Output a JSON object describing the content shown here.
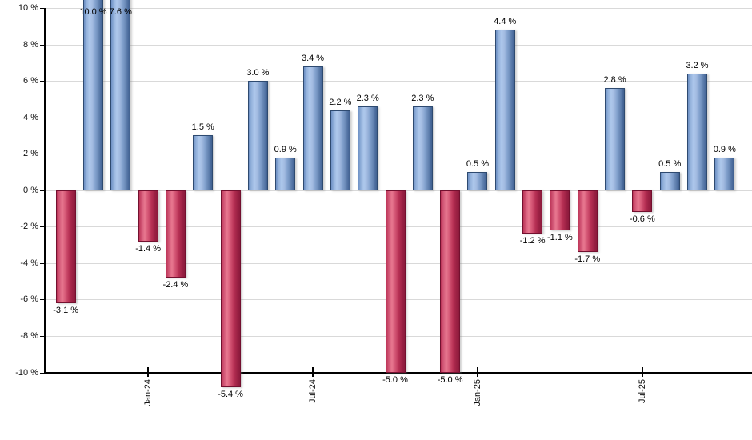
{
  "chart_data": {
    "type": "bar",
    "title": "",
    "xlabel": "",
    "ylabel": "",
    "unit": "%",
    "values": [
      -3.1,
      10.0,
      7.6,
      -1.4,
      -2.4,
      1.5,
      -5.4,
      3.0,
      0.9,
      3.4,
      2.2,
      2.3,
      -5.0,
      2.3,
      -5.0,
      0.5,
      4.4,
      -1.2,
      -1.1,
      -1.7,
      2.8,
      -0.6,
      0.5,
      3.2,
      0.9
    ],
    "bar_labels": [
      "-3.1 %",
      "10.0 %",
      "7.6 %",
      "-1.4 %",
      "-2.4 %",
      "1.5 %",
      "-5.4 %",
      "3.0 %",
      "0.9 %",
      "3.4 %",
      "2.2 %",
      "2.3 %",
      "-5.0 %",
      "2.3 %",
      "-5.0 %",
      "0.5 %",
      "4.4 %",
      "-1.2 %",
      "-1.1 %",
      "-1.7 %",
      "2.8 %",
      "-0.6 %",
      "0.5 %",
      "3.2 %",
      "0.9 %"
    ],
    "x_ticks": [
      {
        "bar_index": 3,
        "label": "Jan-24"
      },
      {
        "bar_index": 9,
        "label": "Jul-24"
      },
      {
        "bar_index": 15,
        "label": "Jan-25"
      },
      {
        "bar_index": 21,
        "label": "Jul-25"
      }
    ],
    "y_tick_labels": [
      "10 %",
      "8 %",
      "6 %",
      "4 %",
      "2 %",
      "0 %",
      "-2 %",
      "-4 %",
      "-6 %",
      "-8 %",
      "-10 %"
    ],
    "ylim": [
      -10,
      10
    ],
    "y_step": 2,
    "grid": true,
    "legend": "none",
    "colors": {
      "positive_fill": "#a3bce2",
      "positive_highlight": "#aec8ec",
      "positive_dark": "#41618f",
      "positive_edge": "#2e4a70",
      "negative_fill": "#d45574",
      "negative_highlight": "#e87890",
      "negative_dark": "#8c1a3c",
      "negative_edge": "#73102f",
      "gridline": "#d9d9d9",
      "axis": "#000000",
      "text": "#111111",
      "background": "#ffffff"
    }
  }
}
